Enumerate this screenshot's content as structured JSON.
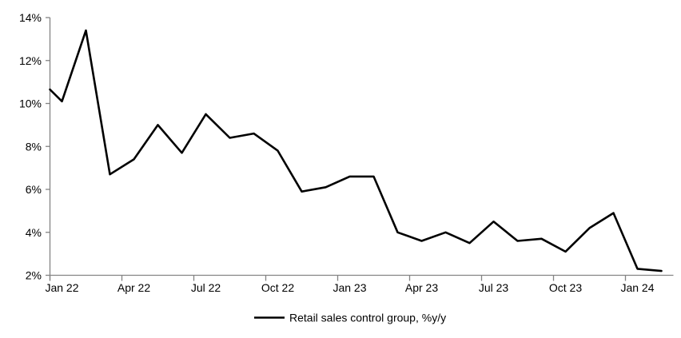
{
  "chart_data": {
    "type": "line",
    "title": "",
    "xlabel": "",
    "ylabel": "",
    "categories": [
      "Jan 22",
      "Feb 22",
      "Mar 22",
      "Apr 22",
      "May 22",
      "Jun 22",
      "Jul 22",
      "Aug 22",
      "Sep 22",
      "Oct 22",
      "Nov 22",
      "Dec 22",
      "Jan 23",
      "Feb 23",
      "Mar 23",
      "Apr 23",
      "May 23",
      "Jun 23",
      "Jul 23",
      "Aug 23",
      "Sep 23",
      "Oct 23",
      "Nov 23",
      "Dec 23",
      "Jan 24",
      "Feb 24"
    ],
    "series": [
      {
        "name": "Retail sales control group, %y/y",
        "values": [
          10.1,
          13.4,
          6.7,
          7.4,
          9.0,
          7.7,
          9.5,
          8.4,
          8.6,
          7.8,
          5.9,
          6.1,
          6.6,
          6.6,
          4.0,
          3.6,
          4.0,
          3.5,
          4.5,
          3.6,
          3.7,
          3.1,
          4.2,
          4.9,
          2.3,
          2.2
        ]
      }
    ],
    "line_enters_left_axis_at": 10.65,
    "ylim": [
      2,
      14
    ],
    "y_ticks": [
      2,
      4,
      6,
      8,
      10,
      12,
      14
    ],
    "y_tick_labels": [
      "2%",
      "4%",
      "6%",
      "8%",
      "10%",
      "12%",
      "14%"
    ],
    "x_tick_labels": [
      "Jan 22",
      "Apr 22",
      "Jul 22",
      "Oct 22",
      "Jan 23",
      "Apr 23",
      "Jul 23",
      "Oct 23",
      "Jan 24"
    ],
    "x_tick_label_indices": [
      0,
      3,
      6,
      9,
      12,
      15,
      18,
      21,
      24
    ],
    "grid": "off",
    "markers": "none",
    "legend_position": "bottom-center",
    "colors": {
      "line": "#000000",
      "axis": "#848484",
      "text": "#000000",
      "background": "#ffffff"
    }
  }
}
